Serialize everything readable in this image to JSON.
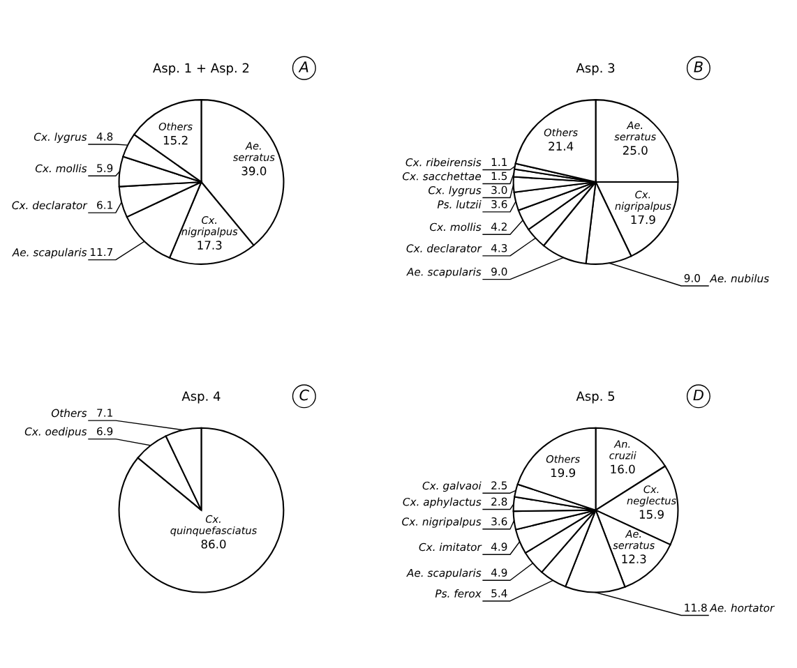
{
  "chart_data": [
    {
      "type": "pie",
      "title": "Asp. 1 + Asp. 2",
      "annotations": [
        "A"
      ],
      "categories": [
        "Ae. serratus",
        "Cx. nigripalpus",
        "Ae. scapularis",
        "Cx. declarator",
        "Cx. mollis",
        "Cx. lygrus",
        "Others"
      ],
      "values": [
        39.0,
        17.3,
        11.7,
        6.1,
        5.9,
        4.8,
        15.2
      ],
      "value_labels": [
        "39.0",
        "17.3",
        "11.7",
        "6.1",
        "5.9",
        "4.8",
        "15.2"
      ],
      "colors": [
        "#ffffff",
        "#ffffff",
        "#ffffff",
        "#ffffff",
        "#ffffff",
        "#ffffff",
        "#ffffff"
      ]
    },
    {
      "type": "pie",
      "title": "Asp. 3",
      "annotations": [
        "B"
      ],
      "categories": [
        "Ae. serratus",
        "Cx. nigripalpus",
        "Ae. nubilus",
        "Ae. scapularis",
        "Cx. declarator",
        "Cx. mollis",
        "Ps. lutzii",
        "Cx. lygrus",
        "Cx. sacchettae",
        "Cx. ribeirensis",
        "Others"
      ],
      "values": [
        25.0,
        17.9,
        9.0,
        9.0,
        4.3,
        4.2,
        3.6,
        3.0,
        1.5,
        1.1,
        21.4
      ],
      "value_labels": [
        "25.0",
        "17.9",
        "9.0",
        "9.0",
        "4.3",
        "4.2",
        "3.6",
        "3.0",
        "1.5",
        "1.1",
        "21.4"
      ],
      "colors": [
        "#ffffff",
        "#ffffff",
        "#ffffff",
        "#ffffff",
        "#ffffff",
        "#ffffff",
        "#ffffff",
        "#ffffff",
        "#ffffff",
        "#ffffff",
        "#ffffff"
      ]
    },
    {
      "type": "pie",
      "title": "Asp. 4",
      "annotations": [
        "C"
      ],
      "categories": [
        "Cx. quinquefasciatus",
        "Cx. oedipus",
        "Others"
      ],
      "values": [
        86.0,
        6.9,
        7.1
      ],
      "value_labels": [
        "86.0",
        "6.9",
        "7.1"
      ],
      "colors": [
        "#ffffff",
        "#ffffff",
        "#ffffff"
      ]
    },
    {
      "type": "pie",
      "title": "Asp. 5",
      "annotations": [
        "D"
      ],
      "categories": [
        "An. cruzii",
        "Cx. neglectus",
        "Ae. serratus",
        "Ae. hortator",
        "Ps. ferox",
        "Ae. scapularis",
        "Cx. imitator",
        "Cx. nigripalpus",
        "Cx. aphylactus",
        "Cx. galvaoi",
        "Others"
      ],
      "values": [
        16.0,
        15.9,
        12.3,
        11.8,
        5.4,
        4.9,
        4.9,
        3.6,
        2.8,
        2.5,
        19.9
      ],
      "value_labels": [
        "16.0",
        "15.9",
        "12.3",
        "11.8",
        "5.4",
        "4.9",
        "4.9",
        "3.6",
        "2.8",
        "2.5",
        "19.9"
      ],
      "colors": [
        "#ffffff",
        "#ffffff",
        "#ffffff",
        "#ffffff",
        "#ffffff",
        "#ffffff",
        "#ffffff",
        "#ffffff",
        "#ffffff",
        "#ffffff",
        "#ffffff"
      ]
    }
  ]
}
